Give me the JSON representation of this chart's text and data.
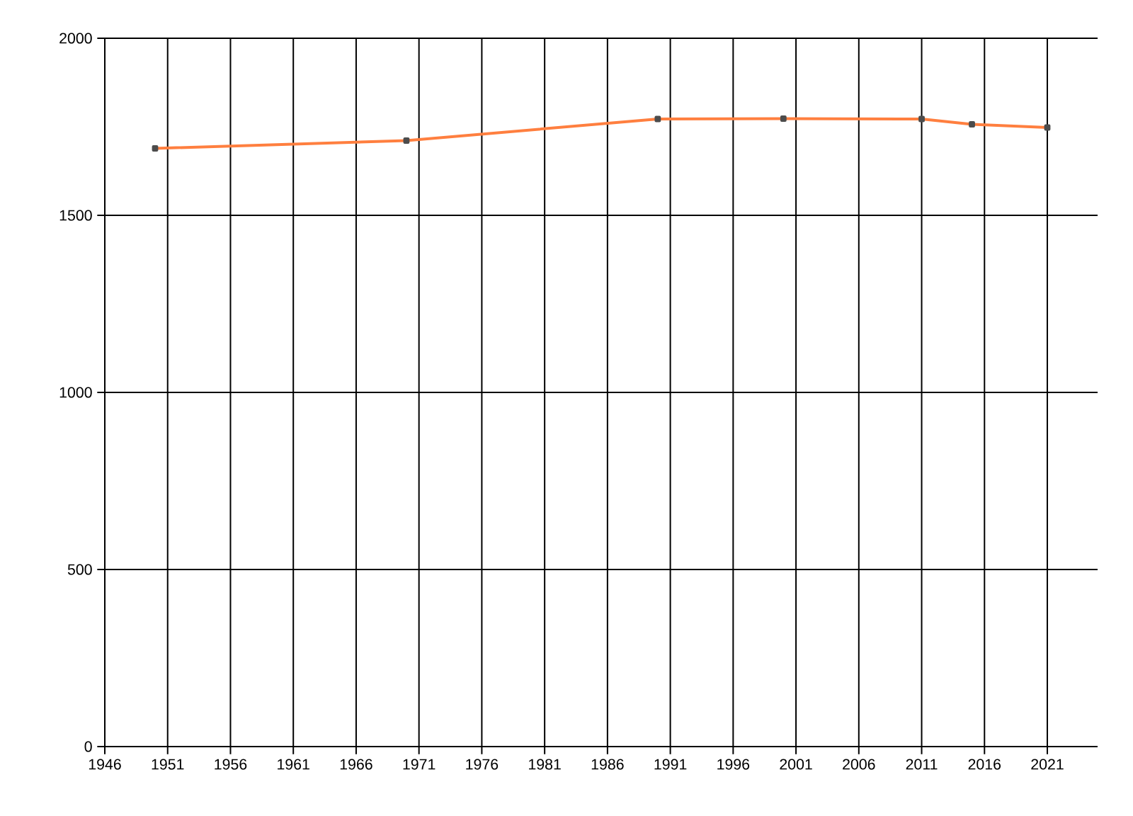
{
  "chart_data": {
    "type": "line",
    "x": [
      1950,
      1970,
      1990,
      2000,
      2011,
      2015,
      2021
    ],
    "series": [
      {
        "color": "#ff7f3f",
        "values": [
          1689,
          1711,
          1772,
          1773,
          1772,
          1757,
          1748
        ]
      }
    ],
    "xlim": [
      1946,
      2025
    ],
    "xticks": [
      1946,
      1951,
      1956,
      1961,
      1966,
      1971,
      1976,
      1981,
      1986,
      1991,
      1996,
      2001,
      2006,
      2011,
      2016,
      2021
    ],
    "ylim": [
      0,
      2000
    ],
    "yticks": [
      0,
      500,
      1000,
      1500,
      2000
    ],
    "grid": true,
    "marker": "square",
    "line_style": "solid"
  }
}
